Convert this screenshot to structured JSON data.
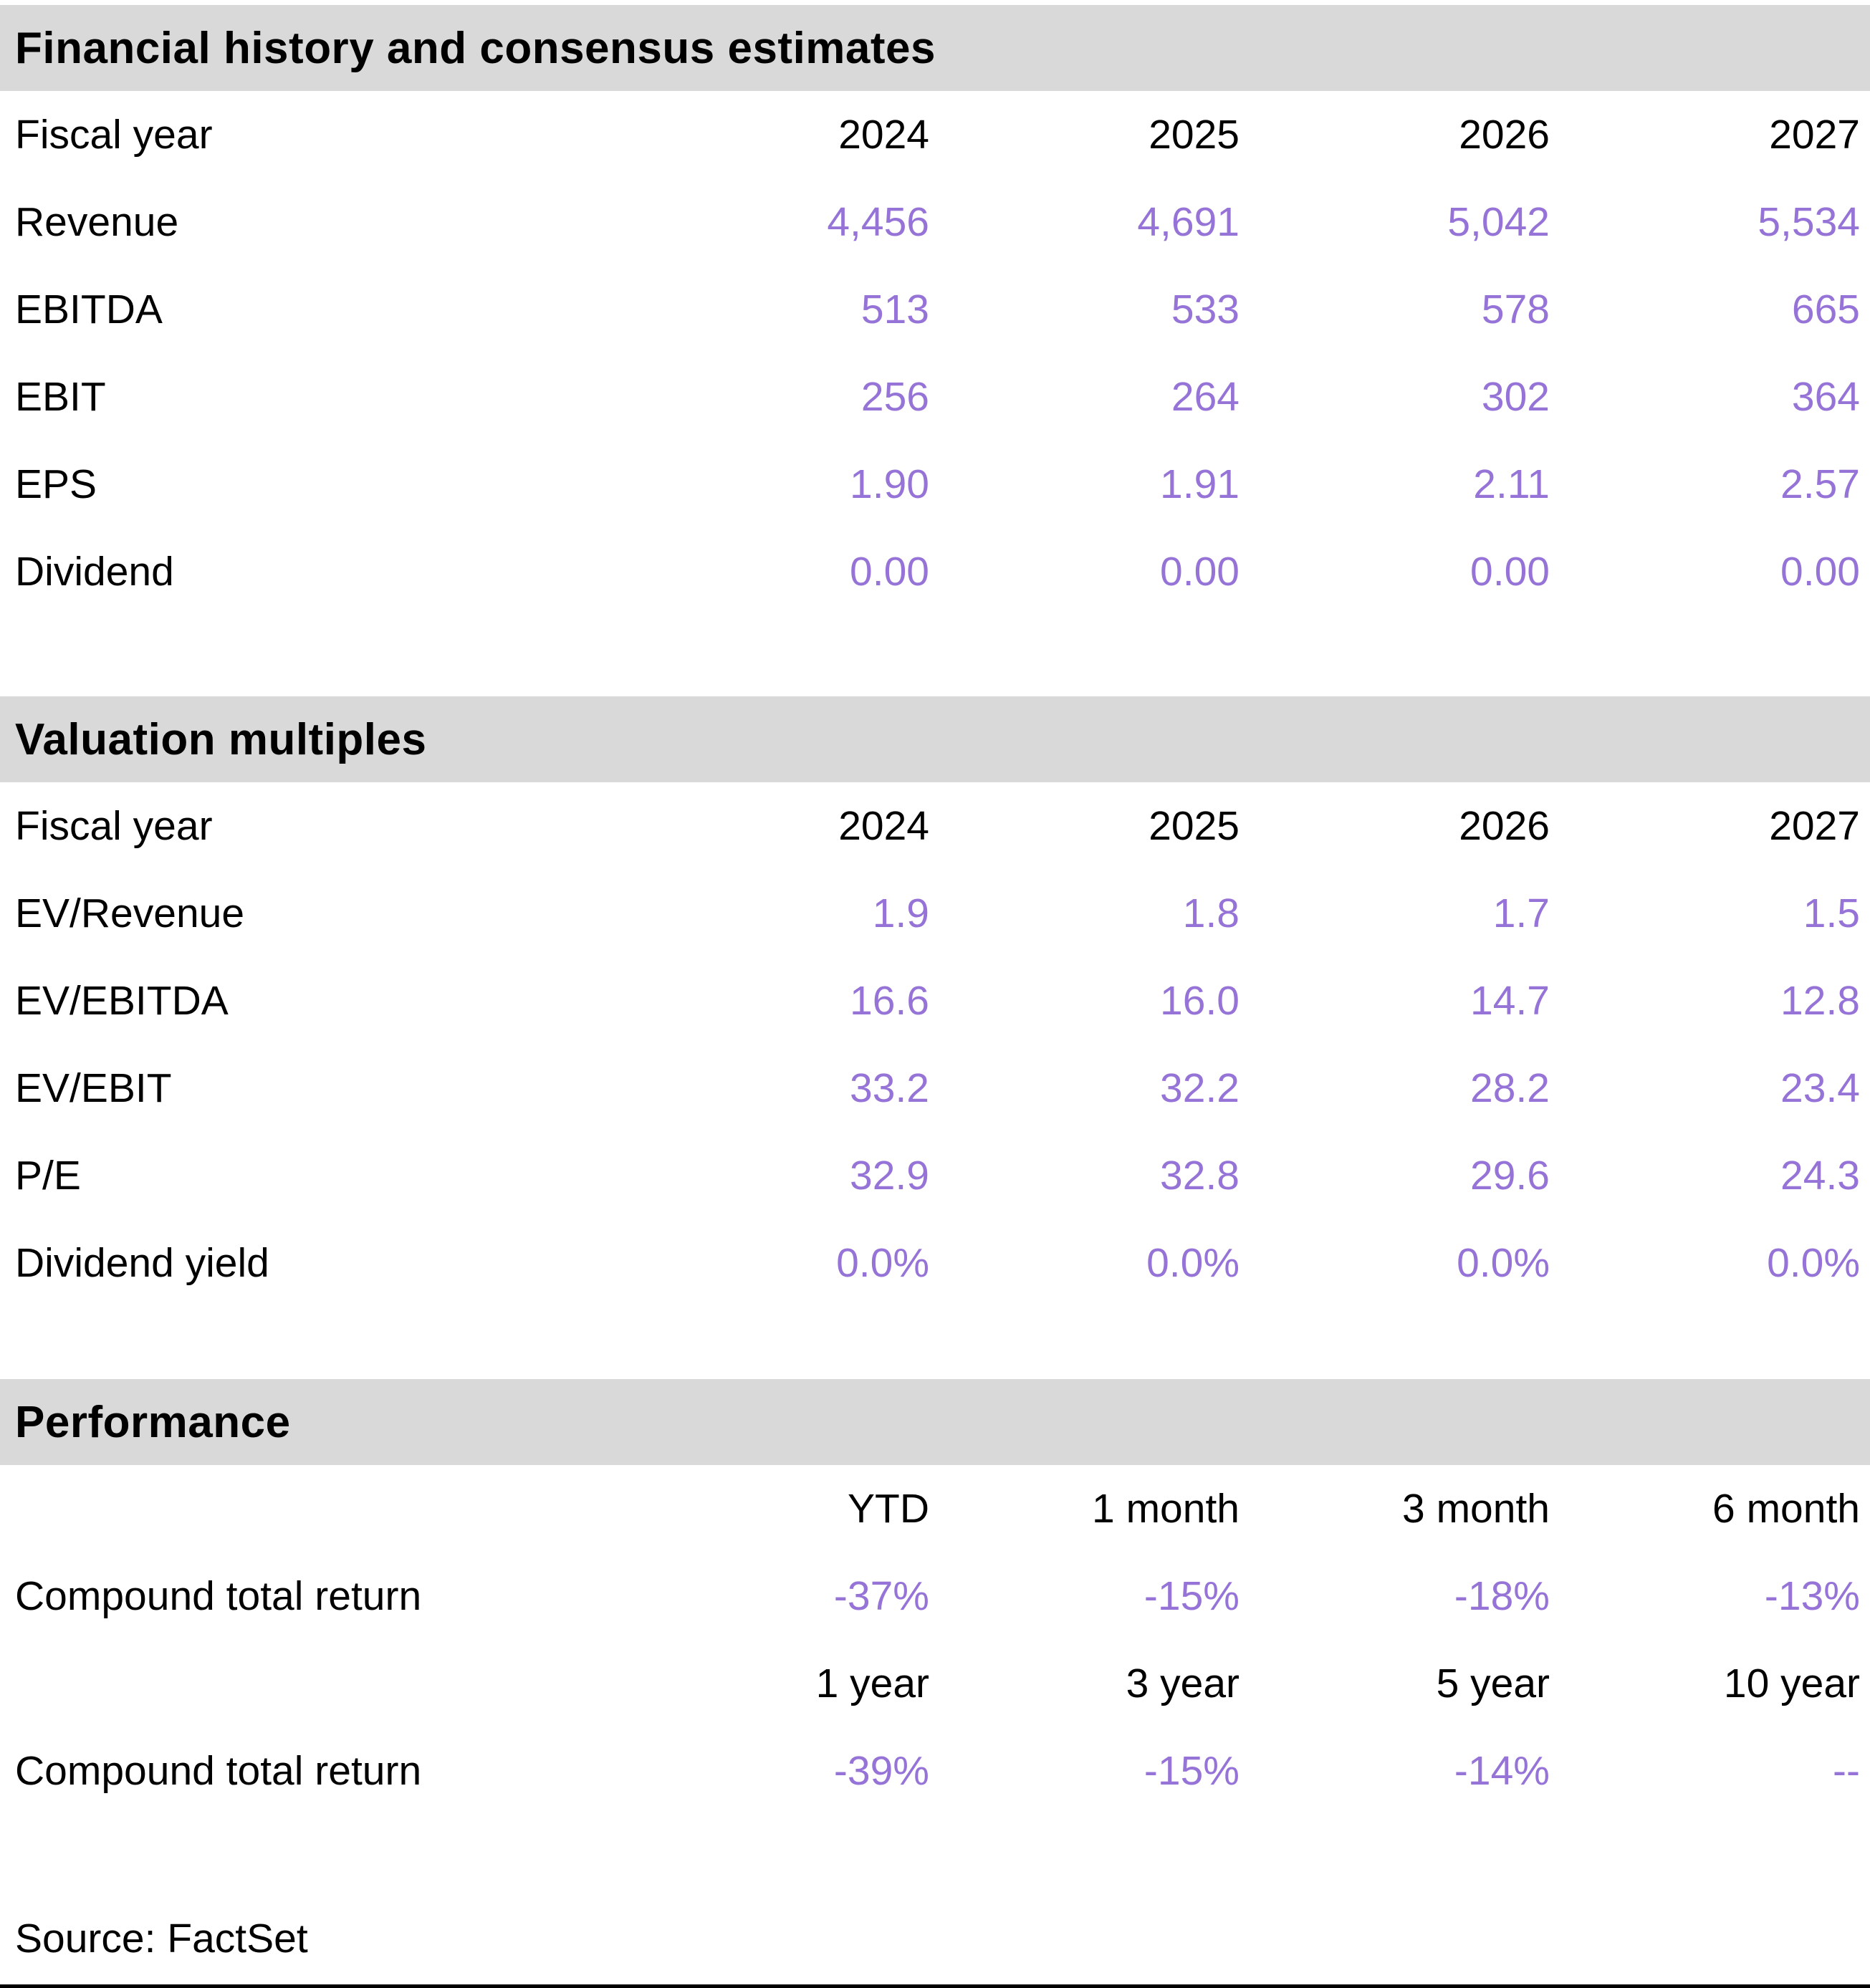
{
  "colors": {
    "section_band_bg": "#d9d9d9",
    "value_text": "#9673d7",
    "label_text": "#000000",
    "bottom_rule": "#000000"
  },
  "sections": [
    {
      "title": "Financial history and consensus estimates",
      "header": {
        "label": "Fiscal year",
        "cols": [
          "2024",
          "2025",
          "2026",
          "2027"
        ]
      },
      "rows": [
        {
          "label": "Revenue",
          "values": [
            "4,456",
            "4,691",
            "5,042",
            "5,534"
          ]
        },
        {
          "label": "EBITDA",
          "values": [
            "513",
            "533",
            "578",
            "665"
          ]
        },
        {
          "label": "EBIT",
          "values": [
            "256",
            "264",
            "302",
            "364"
          ]
        },
        {
          "label": "EPS",
          "values": [
            "1.90",
            "1.91",
            "2.11",
            "2.57"
          ]
        },
        {
          "label": "Dividend",
          "values": [
            "0.00",
            "0.00",
            "0.00",
            "0.00"
          ]
        }
      ]
    },
    {
      "title": "Valuation multiples",
      "header": {
        "label": "Fiscal year",
        "cols": [
          "2024",
          "2025",
          "2026",
          "2027"
        ]
      },
      "rows": [
        {
          "label": "EV/Revenue",
          "values": [
            "1.9",
            "1.8",
            "1.7",
            "1.5"
          ]
        },
        {
          "label": "EV/EBITDA",
          "values": [
            "16.6",
            "16.0",
            "14.7",
            "12.8"
          ]
        },
        {
          "label": "EV/EBIT",
          "values": [
            "33.2",
            "32.2",
            "28.2",
            "23.4"
          ]
        },
        {
          "label": "P/E",
          "values": [
            "32.9",
            "32.8",
            "29.6",
            "24.3"
          ]
        },
        {
          "label": "Dividend yield",
          "values": [
            "0.0%",
            "0.0%",
            "0.0%",
            "0.0%"
          ]
        }
      ]
    },
    {
      "title": "Performance",
      "groups": [
        {
          "header": {
            "label": "",
            "cols": [
              "YTD",
              "1 month",
              "3 month",
              "6 month"
            ]
          },
          "rows": [
            {
              "label": "Compound total return",
              "values": [
                "-37%",
                "-15%",
                "-18%",
                "-13%"
              ]
            }
          ]
        },
        {
          "header": {
            "label": "",
            "cols": [
              "1 year",
              "3 year",
              "5 year",
              "10 year"
            ]
          },
          "rows": [
            {
              "label": "Compound total return",
              "values": [
                "-39%",
                "-15%",
                "-14%",
                "--"
              ]
            }
          ]
        }
      ]
    }
  ],
  "source": "Source: FactSet"
}
